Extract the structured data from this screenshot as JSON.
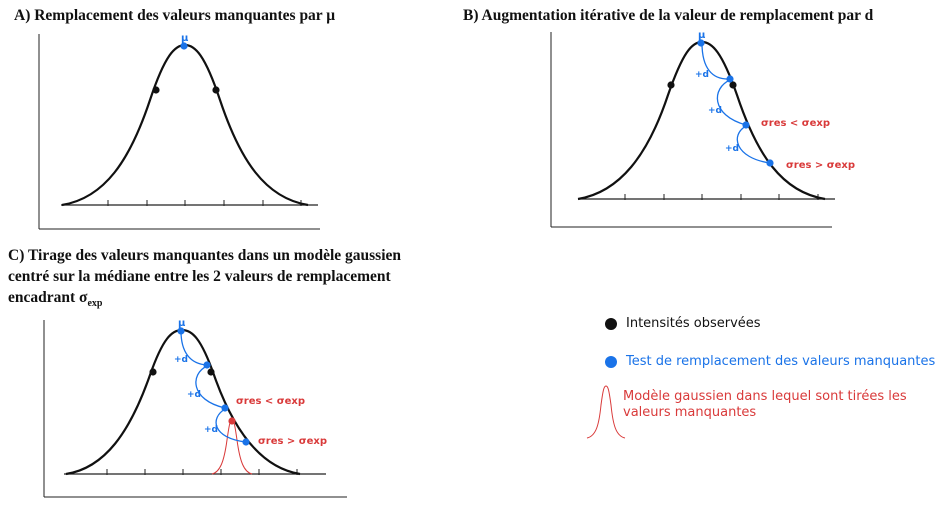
{
  "panels": {
    "a": {
      "title": "A) Remplacement des valeurs manquantes par μ",
      "mu": "μ"
    },
    "b": {
      "title": "B) Augmentation itérative de la valeur de remplacement par d",
      "mu": "μ",
      "step": "+d",
      "label_lt": "σres < σexp",
      "label_gt": "σres > σexp"
    },
    "c": {
      "title_line1": "C) Tirage des valeurs manquantes dans un modèle gaussien",
      "title_line2": "centré sur la médiane entre les 2 valeurs de remplacement",
      "title_line3": "encadrant σ",
      "title_sub": "exp",
      "mu": "μ",
      "step": "+d",
      "label_lt": "σres < σexp",
      "label_gt": "σres > σexp"
    }
  },
  "legend": {
    "observed": "Intensités observées",
    "test": "Test de remplacement des valeurs manquantes",
    "gauss_line1": "Modèle gaussien dans lequel sont tirées les",
    "gauss_line2": "valeurs manquantes"
  },
  "colors": {
    "observed": "#111111",
    "test": "#1a73e8",
    "model": "#d93a3a",
    "curve": "#111111"
  }
}
